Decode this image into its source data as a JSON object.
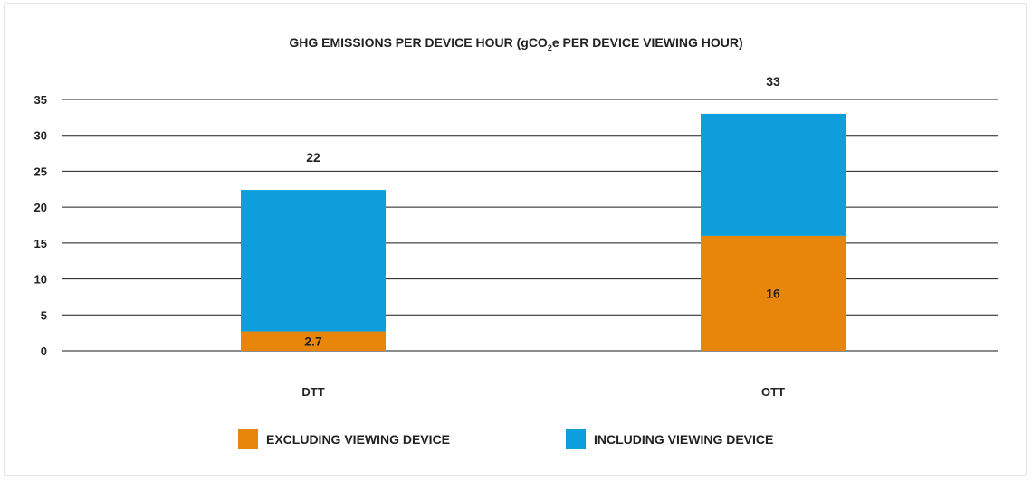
{
  "chart_data": {
    "type": "bar",
    "stacked": true,
    "title_parts": {
      "before": "GHG EMISSIONS PER DEVICE HOUR (gCO",
      "subscript": "2",
      "after": "e PER DEVICE VIEWING HOUR)"
    },
    "categories": [
      "DTT",
      "OTT"
    ],
    "series": [
      {
        "name": "EXCLUDING VIEWING DEVICE",
        "values": [
          2.7,
          16
        ],
        "color": "#E8860B",
        "labels": [
          "2.7",
          "16"
        ]
      },
      {
        "name": "INCLUDING VIEWING DEVICE",
        "values": [
          19.7,
          17
        ],
        "color": "#0E9EDC"
      }
    ],
    "totals": [
      22.4,
      33
    ],
    "total_labels": [
      "22",
      "33"
    ],
    "ylim": [
      0,
      35
    ],
    "yticks": [
      0,
      5,
      10,
      15,
      20,
      25,
      30,
      35
    ],
    "grid": true,
    "legend_position": "bottom"
  }
}
